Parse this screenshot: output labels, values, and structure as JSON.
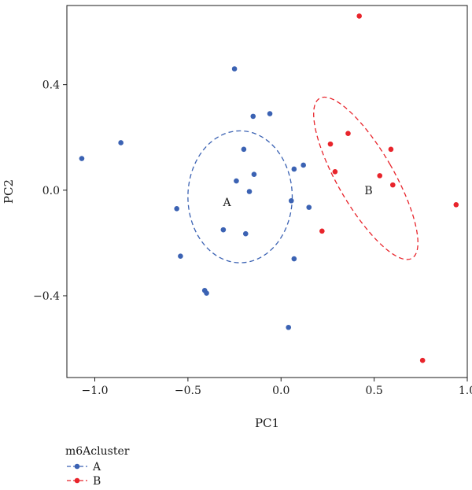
{
  "chart_data": {
    "type": "scatter",
    "xlabel": "PC1",
    "ylabel": "PC2",
    "xlim": [
      -1.15,
      1.0
    ],
    "ylim": [
      -0.71,
      0.7
    ],
    "x_ticks": [
      -1.0,
      -0.5,
      0.0,
      0.5,
      1.0
    ],
    "x_tick_labels": [
      "−1.0",
      "−0.5",
      "0.0",
      "0.5",
      "1.0"
    ],
    "y_ticks": [
      -0.4,
      0.0,
      0.4
    ],
    "y_tick_labels": [
      "−0.4",
      "0.0",
      "0.4"
    ],
    "grid": false,
    "legend_position": "bottom-left",
    "legend_title": "m6Acluster",
    "series": [
      {
        "name": "A",
        "color": "#3b62b3",
        "points": [
          [
            -1.07,
            0.12
          ],
          [
            -0.86,
            0.18
          ],
          [
            -0.25,
            0.46
          ],
          [
            -0.15,
            0.28
          ],
          [
            -0.06,
            0.29
          ],
          [
            -0.2,
            0.155
          ],
          [
            -0.24,
            0.035
          ],
          [
            -0.145,
            0.06
          ],
          [
            -0.17,
            -0.005
          ],
          [
            0.07,
            0.08
          ],
          [
            0.12,
            0.095
          ],
          [
            -0.56,
            -0.07
          ],
          [
            0.055,
            -0.04
          ],
          [
            0.15,
            -0.065
          ],
          [
            -0.31,
            -0.15
          ],
          [
            -0.19,
            -0.165
          ],
          [
            -0.54,
            -0.25
          ],
          [
            0.07,
            -0.26
          ],
          [
            -0.41,
            -0.38
          ],
          [
            -0.4,
            -0.39
          ],
          [
            0.04,
            -0.52
          ]
        ],
        "ellipse": {
          "center": [
            -0.22,
            -0.025
          ],
          "rx": 0.28,
          "ry": 0.25,
          "rotation_deg": 0
        },
        "label": "A",
        "label_pos": [
          -0.29,
          -0.045
        ]
      },
      {
        "name": "B",
        "color": "#e8242b",
        "points": [
          [
            0.42,
            0.66
          ],
          [
            0.36,
            0.215
          ],
          [
            0.265,
            0.175
          ],
          [
            0.59,
            0.155
          ],
          [
            0.29,
            0.07
          ],
          [
            0.53,
            0.055
          ],
          [
            0.6,
            0.02
          ],
          [
            0.94,
            -0.055
          ],
          [
            0.22,
            -0.155
          ],
          [
            0.76,
            -0.645
          ]
        ],
        "ellipse": {
          "center": [
            0.455,
            0.045
          ],
          "rx": 0.15,
          "ry": 0.35,
          "rotation_deg": 30
        },
        "label": "B",
        "label_pos": [
          0.47,
          0.0
        ]
      }
    ]
  }
}
